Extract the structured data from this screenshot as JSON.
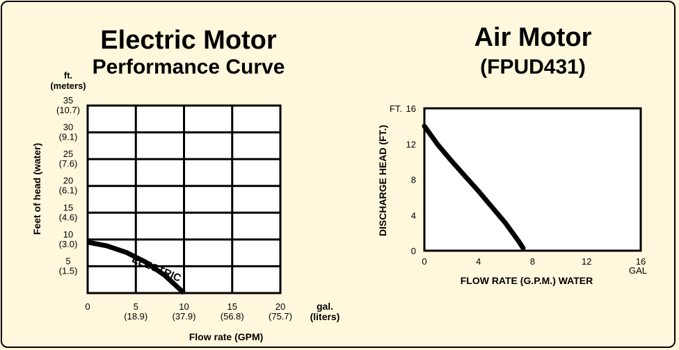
{
  "chart_data": [
    {
      "type": "line",
      "title": "Electric Motor",
      "subtitle": "Performance Curve",
      "xlabel": "Flow rate (GPM)",
      "ylabel": "Feet of head (water)",
      "y_unit_top": "ft.",
      "y_unit_bottom": "(meters)",
      "x_unit_top": "gal.",
      "x_unit_bottom": "(liters)",
      "xlim": [
        0,
        20
      ],
      "ylim": [
        0,
        35
      ],
      "x_ticks": [
        {
          "value": 0,
          "label": "0",
          "sub": ""
        },
        {
          "value": 5,
          "label": "5",
          "sub": "(18.9)"
        },
        {
          "value": 10,
          "label": "10",
          "sub": "(37.9)"
        },
        {
          "value": 15,
          "label": "15",
          "sub": "(56.8)"
        },
        {
          "value": 20,
          "label": "20",
          "sub": "(75.7)"
        }
      ],
      "y_ticks": [
        {
          "value": 35,
          "label": "35",
          "sub": "(10.7)"
        },
        {
          "value": 30,
          "label": "30",
          "sub": "(9.1)"
        },
        {
          "value": 25,
          "label": "25",
          "sub": "(7.6)"
        },
        {
          "value": 20,
          "label": "20",
          "sub": "(6.1)"
        },
        {
          "value": 15,
          "label": "15",
          "sub": "(4.6)"
        },
        {
          "value": 10,
          "label": "10",
          "sub": "(3.0)"
        },
        {
          "value": 5,
          "label": "5",
          "sub": "(1.5)"
        }
      ],
      "series": [
        {
          "name": "ELECTRIC",
          "x": [
            0,
            2,
            4,
            6,
            8,
            10
          ],
          "y": [
            9.5,
            8.8,
            7.6,
            5.8,
            3.3,
            0
          ]
        }
      ]
    },
    {
      "type": "line",
      "title": "Air Motor",
      "subtitle": "(FPUD431)",
      "xlabel": "FLOW RATE (G.P.M.) WATER",
      "ylabel": "DISCHARGE HEAD (FT.)",
      "y_unit": "FT.",
      "x_unit": "GAL",
      "xlim": [
        0,
        16
      ],
      "ylim": [
        0,
        16
      ],
      "x_ticks": [
        "0",
        "4",
        "8",
        "12",
        "16"
      ],
      "y_ticks": [
        "0",
        "4",
        "8",
        "12",
        "16"
      ],
      "series": [
        {
          "name": "Air Motor",
          "x": [
            0,
            1,
            2,
            3,
            4,
            5,
            6,
            7,
            7.3
          ],
          "y": [
            14,
            11.9,
            10.1,
            8.4,
            6.7,
            4.9,
            3.1,
            1.0,
            0.3
          ]
        }
      ]
    }
  ]
}
